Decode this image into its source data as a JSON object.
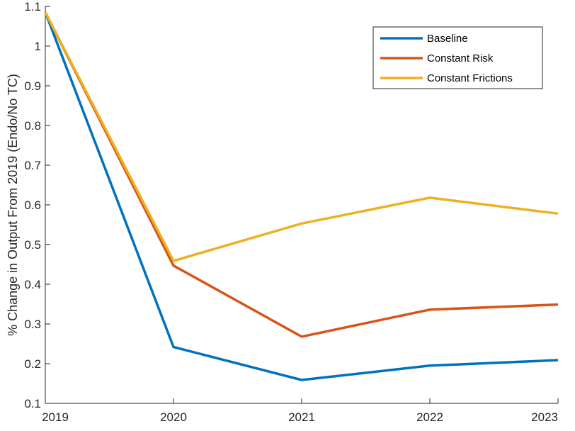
{
  "chart_data": {
    "type": "line",
    "title": "",
    "xlabel": "",
    "ylabel": "% Change in Output From 2019 (Endo/No TC)",
    "x": [
      2019,
      2020,
      2021,
      2022,
      2023
    ],
    "x_tick_labels": [
      "2019",
      "2020",
      "2021",
      "2022",
      "2023"
    ],
    "xlim": [
      2019,
      2023
    ],
    "y_ticks": [
      0.1,
      0.2,
      0.3,
      0.4,
      0.5,
      0.6,
      0.7,
      0.8,
      0.9,
      1,
      1.1
    ],
    "y_tick_labels": [
      "0.1",
      "0.2",
      "0.3",
      "0.4",
      "0.5",
      "0.6",
      "0.7",
      "0.8",
      "0.9",
      "1",
      "1.1"
    ],
    "ylim": [
      0.1,
      1.1
    ],
    "grid": false,
    "legend_position": "top-right",
    "series": [
      {
        "name": "Baseline",
        "color": "#0072BD",
        "values": [
          1.085,
          0.242,
          0.159,
          0.195,
          0.209
        ]
      },
      {
        "name": "Constant Risk",
        "color": "#D95319",
        "values": [
          1.085,
          0.447,
          0.268,
          0.336,
          0.349
        ]
      },
      {
        "name": "Constant Frictions",
        "color": "#EDB120",
        "values": [
          1.085,
          0.459,
          0.553,
          0.618,
          0.578
        ]
      }
    ]
  }
}
